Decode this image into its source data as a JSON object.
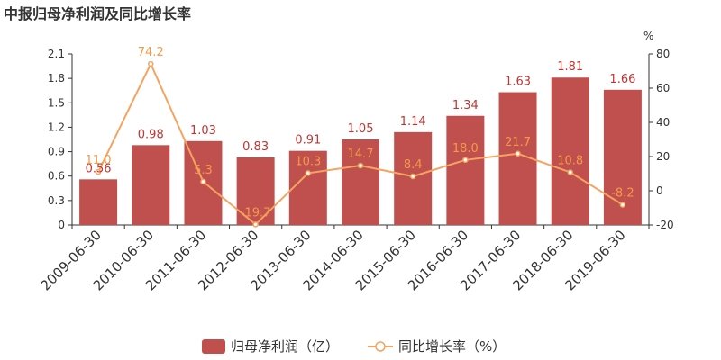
{
  "title": "中报归母净利润及同比增长率",
  "colors": {
    "bar": "#c0504d",
    "line": "#f4a460",
    "bar_label": "#c23531",
    "line_label": "#f19a4a",
    "axis": "#333333"
  },
  "chart_data": {
    "type": "bar",
    "title": "中报归母净利润及同比增长率",
    "categories": [
      "2009-06-30",
      "2010-06-30",
      "2011-06-30",
      "2012-06-30",
      "2013-06-30",
      "2014-06-30",
      "2015-06-30",
      "2016-06-30",
      "2017-06-30",
      "2018-06-30",
      "2019-06-30"
    ],
    "series": [
      {
        "name": "归母净利润（亿）",
        "type": "bar",
        "axis": "left",
        "values": [
          0.56,
          0.98,
          1.03,
          0.83,
          0.91,
          1.05,
          1.14,
          1.34,
          1.63,
          1.81,
          1.66
        ],
        "labels": [
          "0.56",
          "0.98",
          "1.03",
          "0.83",
          "0.91",
          "1.05",
          "1.14",
          "1.34",
          "1.63",
          "1.81",
          "1.66"
        ]
      },
      {
        "name": "同比增长率（%）",
        "type": "line",
        "axis": "right",
        "values": [
          11.0,
          74.2,
          5.3,
          -19.7,
          10.3,
          14.7,
          8.4,
          18.0,
          21.7,
          10.8,
          -8.2
        ],
        "labels": [
          "11.0",
          "74.2",
          "5.3",
          "-19.7",
          "10.3",
          "14.7",
          "8.4",
          "18.0",
          "21.7",
          "10.8",
          "-8.2"
        ]
      }
    ],
    "y_left": {
      "ylim": [
        0,
        2.1
      ],
      "ticks": [
        "0",
        "0.3",
        "0.6",
        "0.9",
        "1.2",
        "1.5",
        "1.8",
        "2.1"
      ]
    },
    "y_right": {
      "ylim": [
        -20,
        80
      ],
      "unit": "%",
      "ticks": [
        "-20",
        "0",
        "20",
        "40",
        "60",
        "80"
      ]
    },
    "grid": false,
    "legend_position": "bottom-center"
  }
}
